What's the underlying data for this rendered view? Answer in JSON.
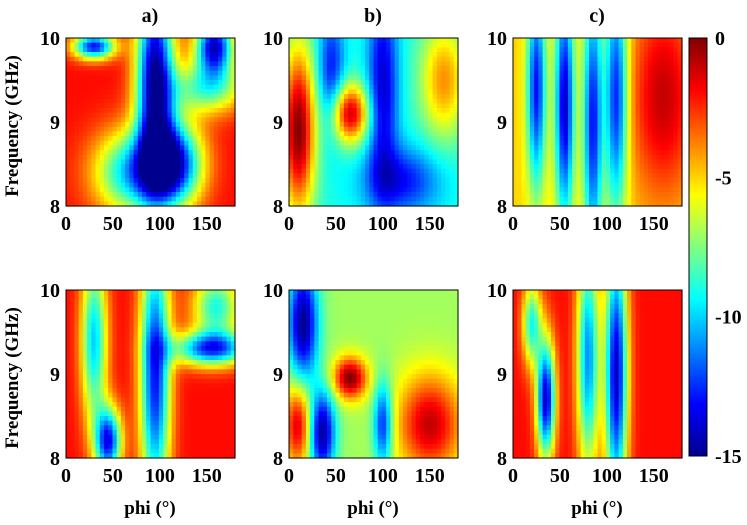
{
  "chart_data": {
    "type": "heatmap",
    "panel_labels": [
      "a)",
      "b)",
      "c)"
    ],
    "ylabel": "Frequency (GHz)",
    "xlabel": "phi (°)",
    "xlim": [
      0,
      180
    ],
    "ylim": [
      8,
      10
    ],
    "x_ticks": [
      0,
      50,
      100,
      150
    ],
    "y_ticks": [
      8,
      9,
      10
    ],
    "colorbar": {
      "range": [
        -15,
        0
      ],
      "ticks": [
        0,
        -5,
        -10,
        -15
      ],
      "colormap": [
        "#00008f",
        "#0000ff",
        "#0080ff",
        "#00ffff",
        "#80ff80",
        "#ffff00",
        "#ff8000",
        "#ff0000",
        "#800000"
      ]
    },
    "panels": [
      {
        "row": "top",
        "column": "a)",
        "baseline": -2,
        "features": [
          {
            "x": 30,
            "y": 9.9,
            "width": 22,
            "height": 0.15,
            "depth": -11
          },
          {
            "x": 95,
            "y": 9.5,
            "width": 20,
            "height": 1.2,
            "depth": -13
          },
          {
            "x": 115,
            "y": 8.5,
            "width": 30,
            "height": 0.5,
            "depth": -11
          },
          {
            "x": 158,
            "y": 9.9,
            "width": 20,
            "height": 0.35,
            "depth": -12
          },
          {
            "x": 150,
            "y": 9.4,
            "width": 40,
            "height": 0.3,
            "depth": -6
          },
          {
            "x": 70,
            "y": 8.4,
            "width": 40,
            "height": 0.5,
            "depth": -8
          }
        ]
      },
      {
        "row": "top",
        "column": "b)",
        "baseline": -9,
        "features": [
          {
            "x": 10,
            "y": 8.9,
            "width": 18,
            "height": 1.0,
            "depth": 9
          },
          {
            "x": 65,
            "y": 9.1,
            "width": 20,
            "height": 0.35,
            "depth": 8
          },
          {
            "x": 45,
            "y": 9.6,
            "width": 14,
            "height": 0.7,
            "depth": -4
          },
          {
            "x": 100,
            "y": 9.4,
            "width": 16,
            "height": 1.2,
            "depth": -5
          },
          {
            "x": 165,
            "y": 9.5,
            "width": 25,
            "height": 0.7,
            "depth": 5
          },
          {
            "x": 120,
            "y": 8.3,
            "width": 40,
            "height": 0.4,
            "depth": -4
          }
        ]
      },
      {
        "row": "top",
        "column": "c)",
        "baseline": -5,
        "features": [
          {
            "x": 25,
            "y": 9.4,
            "width": 10,
            "height": 1.2,
            "depth": -8
          },
          {
            "x": 55,
            "y": 9.2,
            "width": 10,
            "height": 1.4,
            "depth": -9
          },
          {
            "x": 85,
            "y": 9.0,
            "width": 10,
            "height": 1.6,
            "depth": -8
          },
          {
            "x": 110,
            "y": 9.3,
            "width": 12,
            "height": 1.4,
            "depth": -8
          },
          {
            "x": 160,
            "y": 9.3,
            "width": 35,
            "height": 1.2,
            "depth": 4
          }
        ]
      },
      {
        "row": "bottom",
        "column": "a)",
        "baseline": -2,
        "features": [
          {
            "x": 30,
            "y": 9.4,
            "width": 14,
            "height": 1.0,
            "depth": -8
          },
          {
            "x": 45,
            "y": 8.2,
            "width": 14,
            "height": 0.4,
            "depth": -11
          },
          {
            "x": 95,
            "y": 9.0,
            "width": 16,
            "height": 1.6,
            "depth": -11
          },
          {
            "x": 155,
            "y": 9.3,
            "width": 40,
            "height": 0.2,
            "depth": -10
          },
          {
            "x": 160,
            "y": 9.8,
            "width": 25,
            "height": 0.4,
            "depth": -7
          }
        ]
      },
      {
        "row": "bottom",
        "column": "b)",
        "baseline": -7,
        "features": [
          {
            "x": 15,
            "y": 9.6,
            "width": 16,
            "height": 0.7,
            "depth": -8
          },
          {
            "x": 35,
            "y": 8.3,
            "width": 14,
            "height": 0.5,
            "depth": -8
          },
          {
            "x": 65,
            "y": 8.95,
            "width": 18,
            "height": 0.25,
            "depth": 7
          },
          {
            "x": 10,
            "y": 8.4,
            "width": 15,
            "height": 0.5,
            "depth": 6
          },
          {
            "x": 150,
            "y": 8.4,
            "width": 35,
            "height": 0.6,
            "depth": 6
          },
          {
            "x": 100,
            "y": 8.4,
            "width": 10,
            "height": 0.5,
            "depth": -6
          }
        ]
      },
      {
        "row": "bottom",
        "column": "c)",
        "baseline": -2,
        "features": [
          {
            "x": 35,
            "y": 8.7,
            "width": 10,
            "height": 0.7,
            "depth": -12
          },
          {
            "x": 80,
            "y": 9.2,
            "width": 12,
            "height": 1.4,
            "depth": -9
          },
          {
            "x": 110,
            "y": 9.0,
            "width": 12,
            "height": 1.6,
            "depth": -12
          },
          {
            "x": 20,
            "y": 9.6,
            "width": 10,
            "height": 0.5,
            "depth": -7
          }
        ]
      }
    ]
  }
}
